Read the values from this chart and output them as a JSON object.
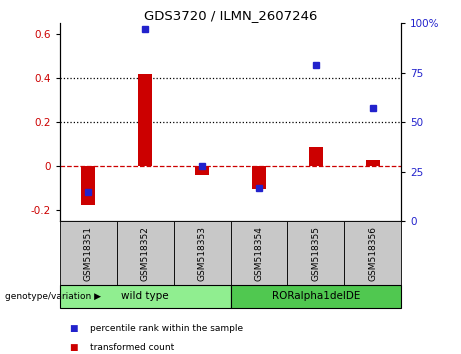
{
  "title": "GDS3720 / ILMN_2607246",
  "samples": [
    "GSM518351",
    "GSM518352",
    "GSM518353",
    "GSM518354",
    "GSM518355",
    "GSM518356"
  ],
  "transformed_count": [
    -0.175,
    0.42,
    -0.04,
    -0.105,
    0.085,
    0.03
  ],
  "percentile_rank": [
    15,
    97,
    28,
    17,
    79,
    57
  ],
  "ylim_left": [
    -0.25,
    0.65
  ],
  "ylim_right": [
    0,
    100
  ],
  "yticks_left": [
    -0.2,
    0.0,
    0.2,
    0.4,
    0.6
  ],
  "yticks_right": [
    0,
    25,
    50,
    75,
    100
  ],
  "hlines_dotted": [
    0.2,
    0.4
  ],
  "hlines_zero_red_dash": 0.0,
  "groups": [
    {
      "label": "wild type",
      "samples": [
        0,
        1,
        2
      ],
      "color": "#90ee90"
    },
    {
      "label": "RORalpha1delDE",
      "samples": [
        3,
        4,
        5
      ],
      "color": "#50c850"
    }
  ],
  "red_color": "#cc0000",
  "blue_color": "#2222cc",
  "zero_line_color": "#cc0000",
  "dotted_line_color": "#000000",
  "background_color": "#ffffff",
  "legend_items": [
    {
      "label": "transformed count",
      "color": "#cc0000"
    },
    {
      "label": "percentile rank within the sample",
      "color": "#2222cc"
    }
  ],
  "genotype_label": "genotype/variation",
  "xlabel_gray_bg": "#c8c8c8",
  "group_border_color": "#000000",
  "lighter_green": "#aaeaaa",
  "darker_green": "#50c850"
}
